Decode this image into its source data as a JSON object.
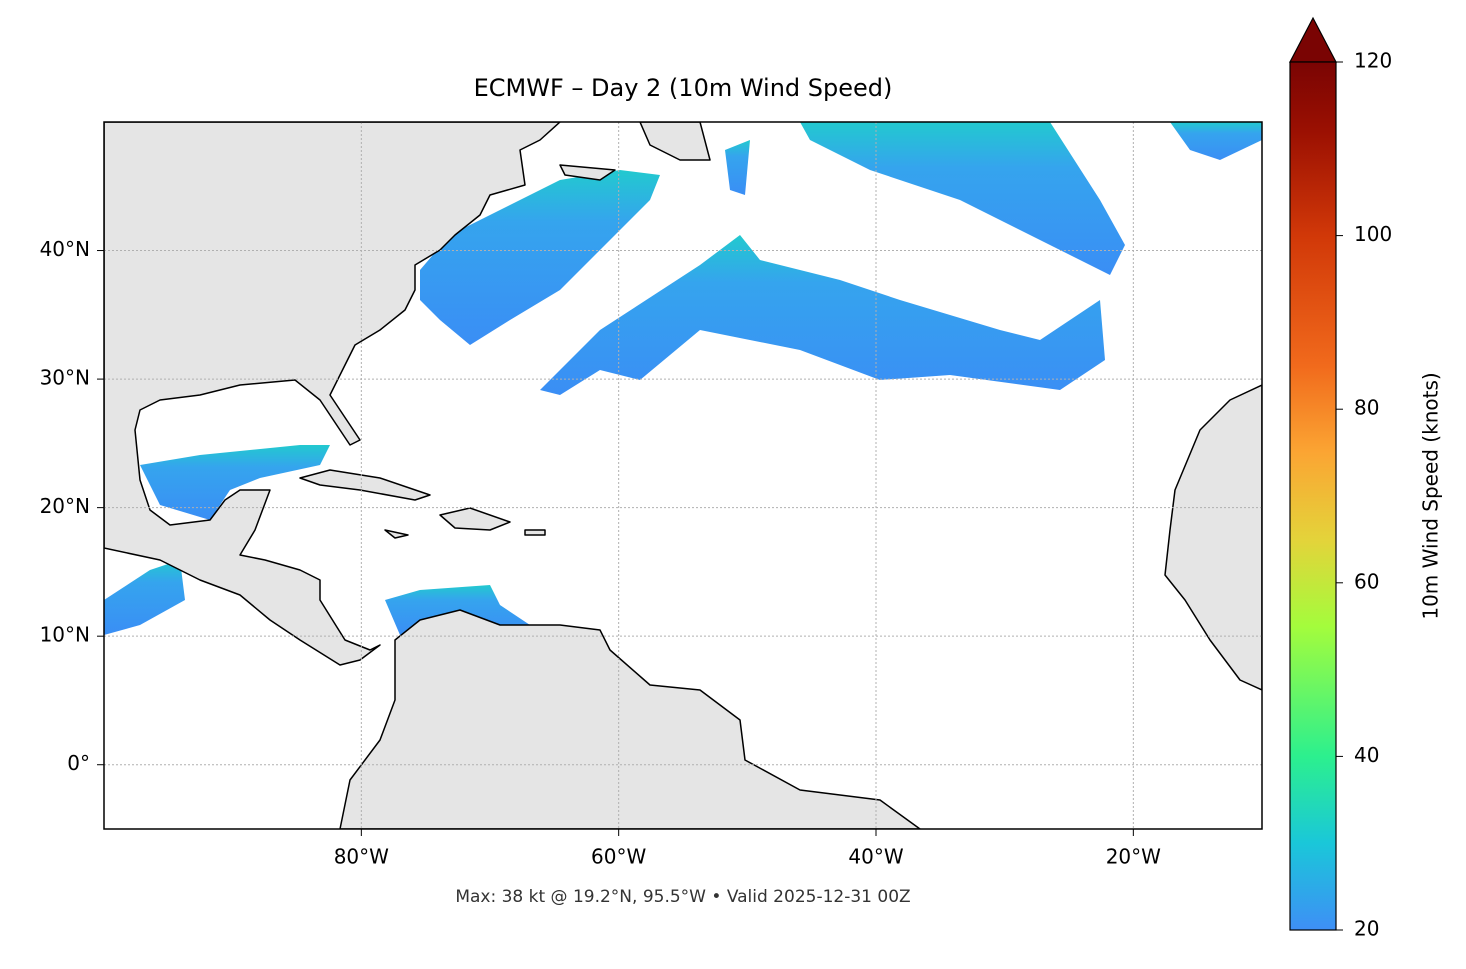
{
  "map": {
    "title": "ECMWF – Day 2 (10m Wind Speed)",
    "xlim": [
      -100,
      -10
    ],
    "ylim": [
      -5,
      50
    ],
    "xticks": [
      {
        "value": -80,
        "label": "80°W"
      },
      {
        "value": -60,
        "label": "60°W"
      },
      {
        "value": -40,
        "label": "40°W"
      },
      {
        "value": -20,
        "label": "20°W"
      }
    ],
    "yticks": [
      {
        "value": 0,
        "label": "0°"
      },
      {
        "value": 10,
        "label": "10°N"
      },
      {
        "value": 20,
        "label": "20°N"
      },
      {
        "value": 30,
        "label": "30°N"
      },
      {
        "value": 40,
        "label": "40°N"
      }
    ],
    "grid": true,
    "caption": "Max: 38 kt @ 19.2°N, 95.5°W • Valid 2025-12-31 00Z",
    "colorbar": {
      "label": "10m Wind Speed (knots)",
      "lim": [
        20,
        120
      ],
      "ticks": [
        20,
        40,
        60,
        80,
        100,
        120
      ]
    }
  }
}
